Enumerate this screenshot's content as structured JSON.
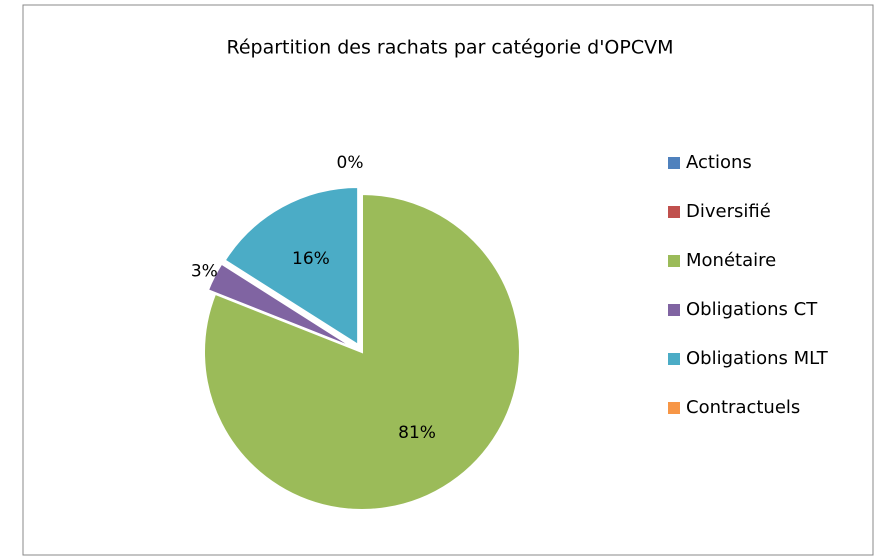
{
  "chart_data": {
    "type": "pie",
    "title": "Répartition des rachats par catégorie d'OPCVM",
    "categories": [
      "Actions",
      "Diversifié",
      "Monétaire",
      "Obligations CT",
      "Obligations MLT",
      "Contractuels"
    ],
    "values": [
      0,
      0,
      81,
      3,
      16,
      0
    ],
    "value_labels": [
      "0%",
      null,
      "81%",
      "3%",
      "16%",
      null
    ],
    "colors": [
      "#4f81bd",
      "#c0504d",
      "#9bbb59",
      "#8064a2",
      "#4bacc6",
      "#f79646"
    ],
    "legend": "right"
  }
}
